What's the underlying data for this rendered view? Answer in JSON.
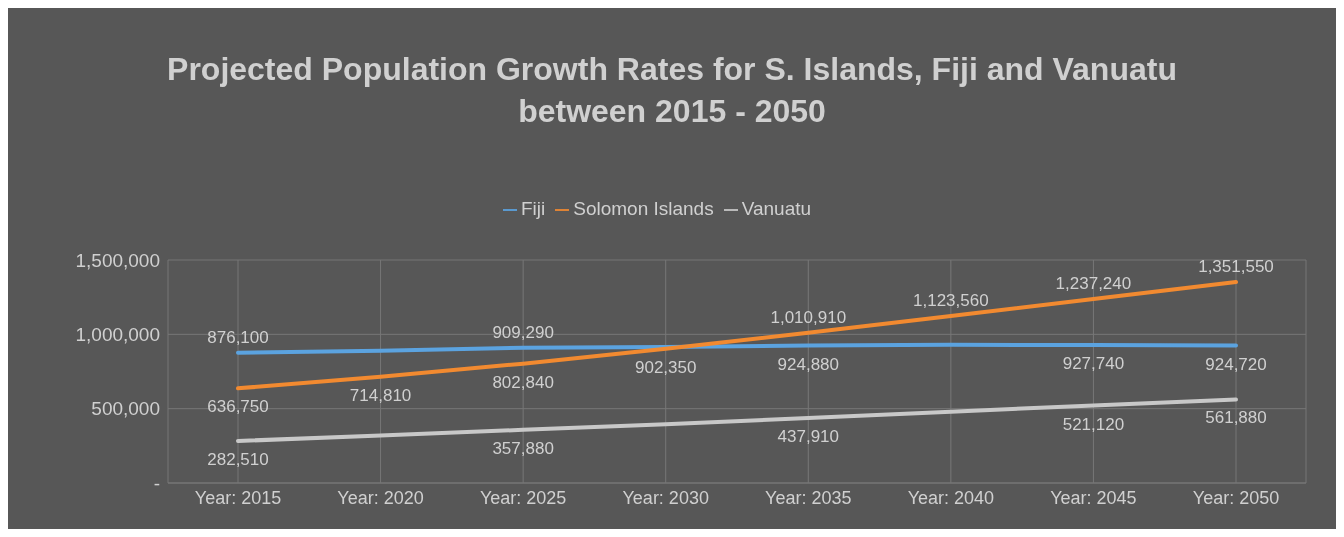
{
  "chart_data": {
    "type": "line",
    "title": "Projected Population Growth Rates for S. Islands, Fiji and Vanuatu between 2015 - 2050",
    "categories": [
      "Year: 2015",
      "Year: 2020",
      "Year: 2025",
      "Year: 2030",
      "Year: 2035",
      "Year: 2040",
      "Year: 2045",
      "Year: 2050"
    ],
    "series": [
      {
        "name": "Fiji",
        "color": "#5ba3e0",
        "values": [
          876100,
          890000,
          909290,
          915000,
          924880,
          930000,
          927740,
          924720
        ],
        "value_labels": [
          "876,100",
          null,
          "909,290",
          null,
          "924,880",
          null,
          "927,740",
          "924,720"
        ]
      },
      {
        "name": "Solomon Islands",
        "color": "#f28a30",
        "values": [
          636750,
          714810,
          802840,
          902350,
          1010910,
          1123560,
          1237240,
          1351550
        ],
        "value_labels": [
          "636,750",
          "714,810",
          "802,840",
          "902,350",
          "1,010,910",
          "1,123,560",
          "1,237,240",
          "1,351,550"
        ]
      },
      {
        "name": "Vanuatu",
        "color": "#c8c8c8",
        "values": [
          282510,
          320000,
          357880,
          395000,
          437910,
          480000,
          521120,
          561880
        ],
        "value_labels": [
          "282,510",
          null,
          "357,880",
          null,
          "437,910",
          null,
          "521,120",
          "561,880"
        ]
      }
    ],
    "ylim": [
      0,
      1500000
    ],
    "yticks": [
      {
        "value": 0,
        "label": "-"
      },
      {
        "value": 500000,
        "label": "500,000"
      },
      {
        "value": 1000000,
        "label": "1,000,000"
      },
      {
        "value": 1500000,
        "label": "1,500,000"
      }
    ],
    "grid": true,
    "legend": "top",
    "marker": "none"
  }
}
